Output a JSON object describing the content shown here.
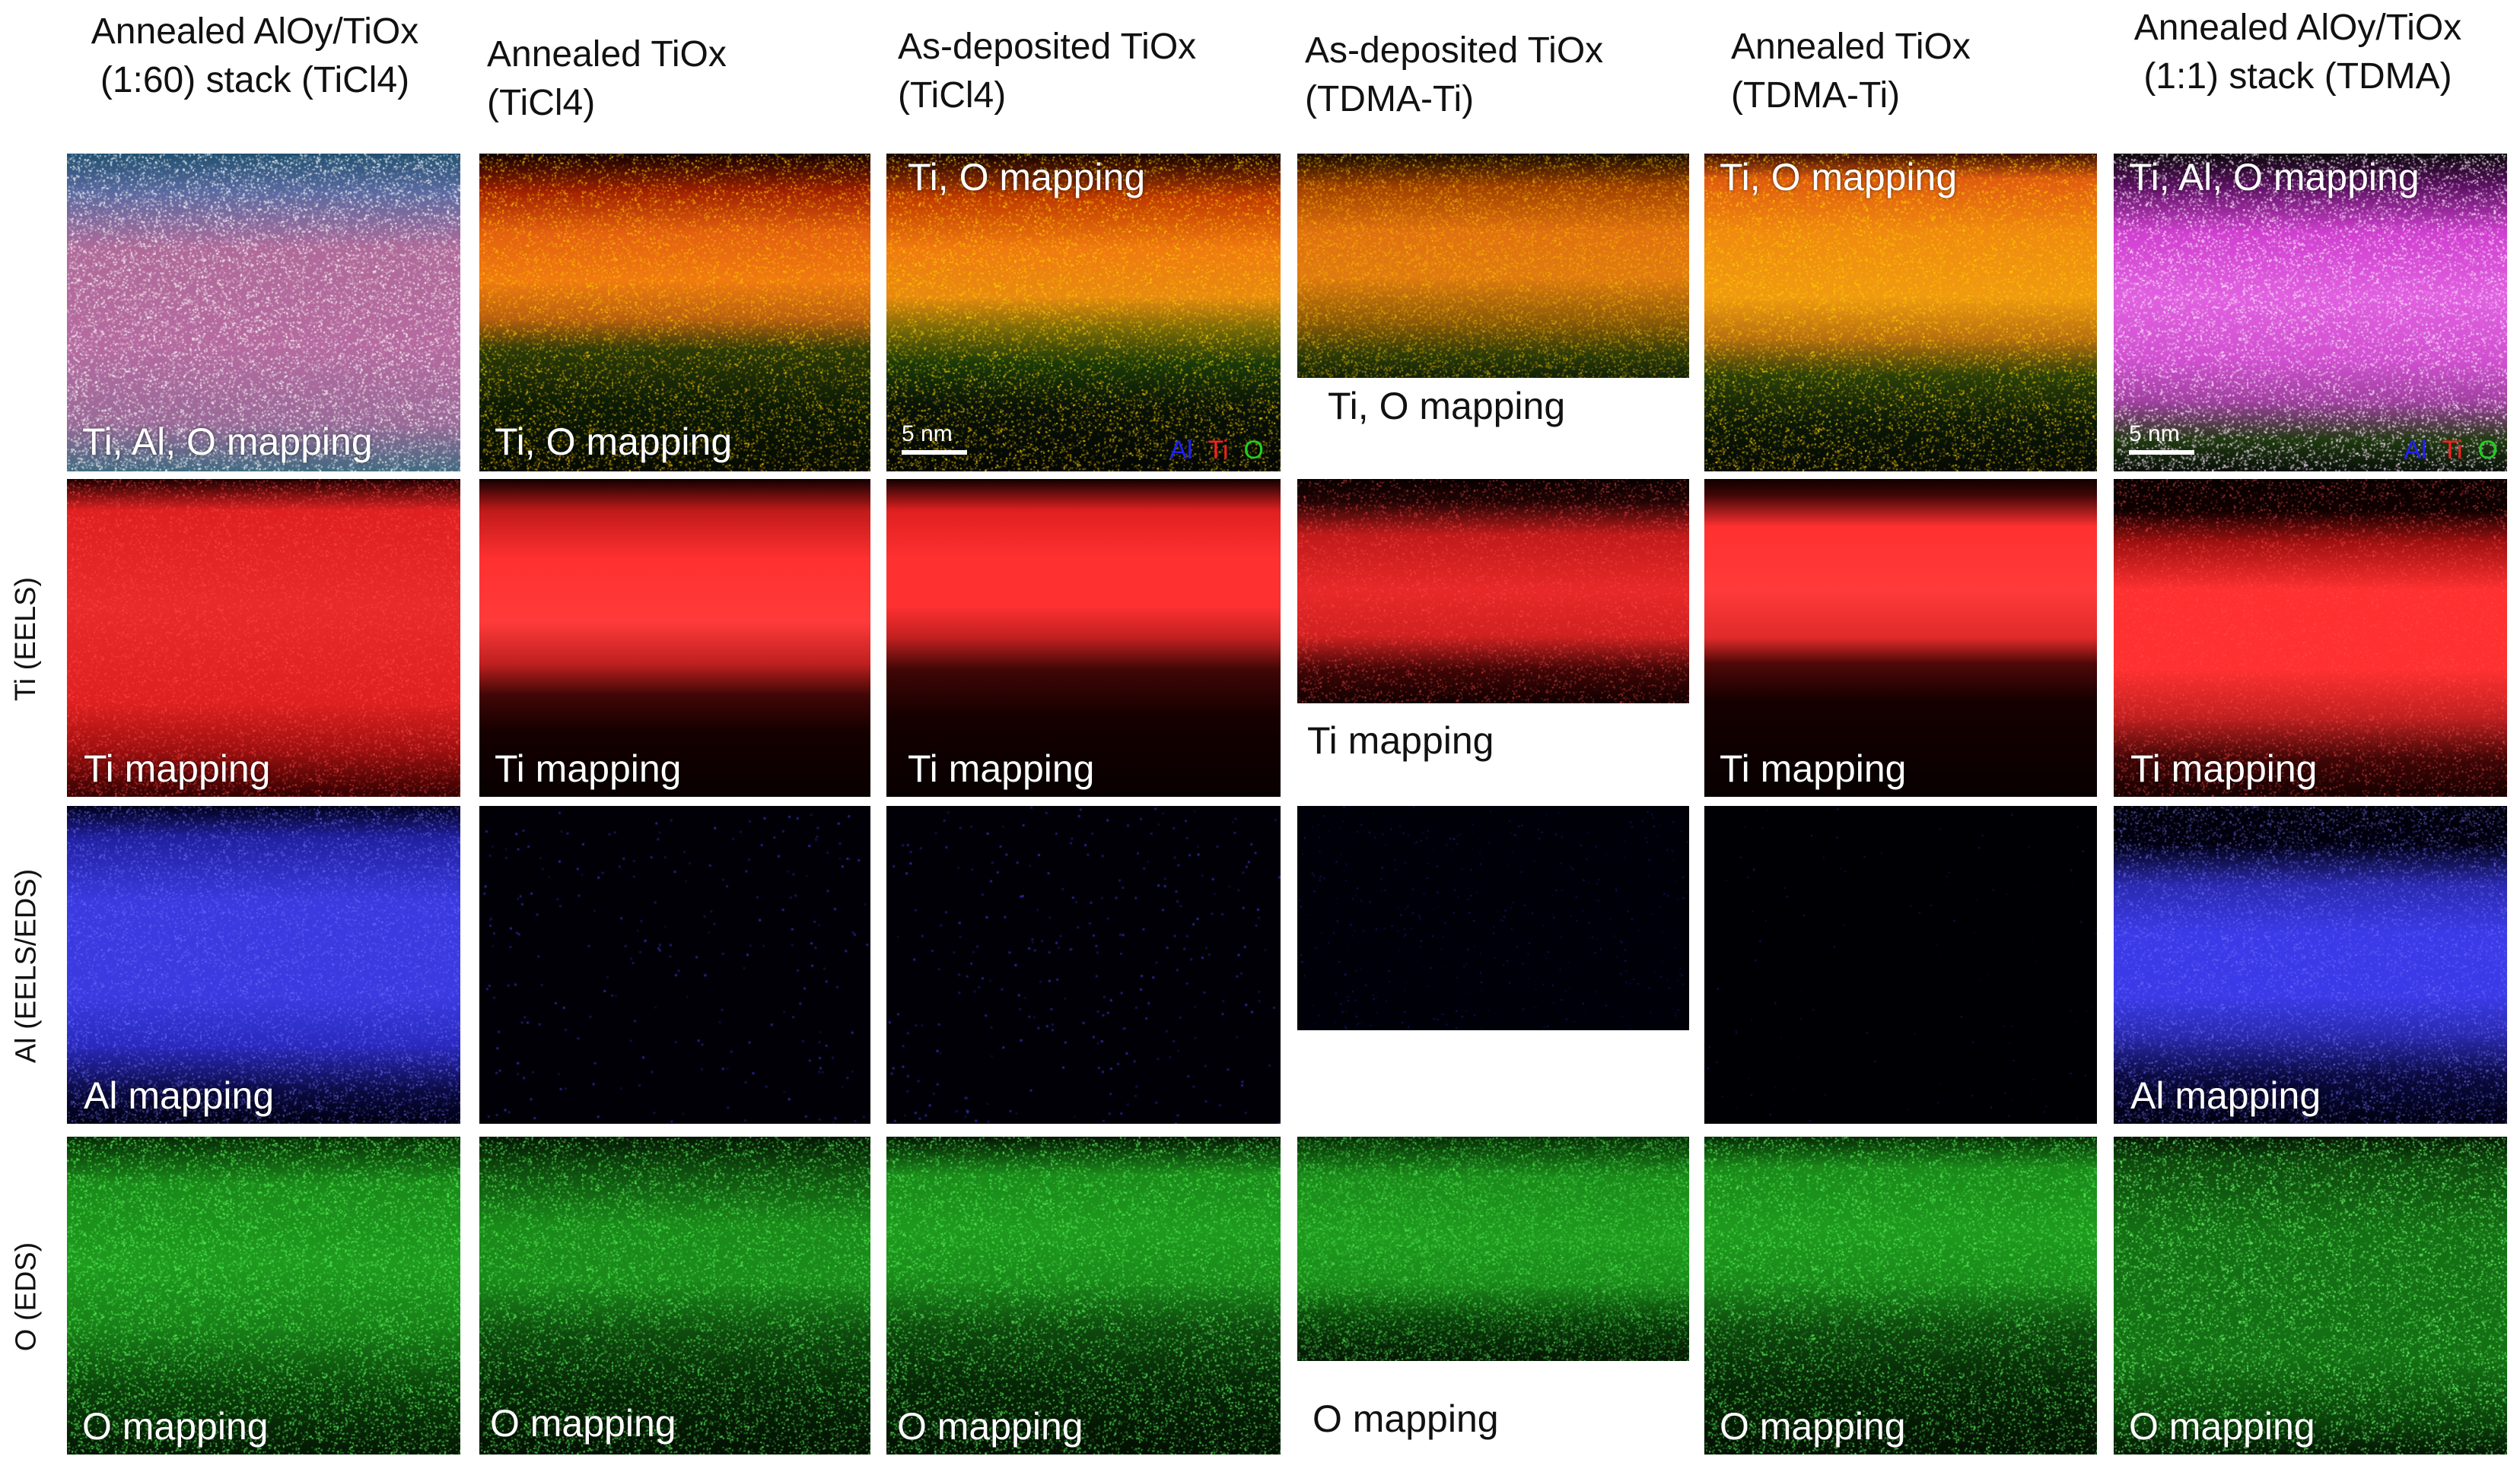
{
  "columns": [
    {
      "line1": "Annealed AlOy/TiOx",
      "line2": "(1:60) stack (TiCl4)"
    },
    {
      "line1": "Annealed TiOx",
      "line2": "(TiCl4)"
    },
    {
      "line1": "As-deposited TiOx",
      "line2": "(TiCl4)"
    },
    {
      "line1": "As-deposited TiOx",
      "line2": "(TDMA-Ti)"
    },
    {
      "line1": "Annealed TiOx",
      "line2": "(TDMA-Ti)"
    },
    {
      "line1": "Annealed AlOy/TiOx",
      "line2": "(1:1) stack (TDMA)"
    }
  ],
  "rows": [
    {
      "label": ""
    },
    {
      "label": "Ti (EELS)"
    },
    {
      "label": "Al (EELS/EDS)"
    },
    {
      "label": "O (EDS)"
    }
  ],
  "panels": {
    "r0": [
      "Ti, Al, O mapping",
      "Ti, O mapping",
      "Ti, O mapping",
      "Ti, O mapping",
      "Ti, O mapping",
      "Ti, Al, O mapping"
    ],
    "r1": [
      "Ti mapping",
      "Ti mapping",
      "Ti mapping",
      "Ti mapping",
      "Ti mapping",
      "Ti mapping"
    ],
    "r2": [
      "Al mapping",
      "",
      "",
      "",
      "",
      "Al mapping"
    ],
    "r3": [
      "O mapping",
      "O mapping",
      "O mapping",
      "O mapping",
      "O mapping",
      "O mapping"
    ]
  },
  "scalebar": {
    "label": "5 nm"
  },
  "legend": {
    "al": "Al",
    "ti": "Ti",
    "o": "O",
    "al_color": "#2020ff",
    "ti_color": "#ff2020",
    "o_color": "#20d020"
  }
}
